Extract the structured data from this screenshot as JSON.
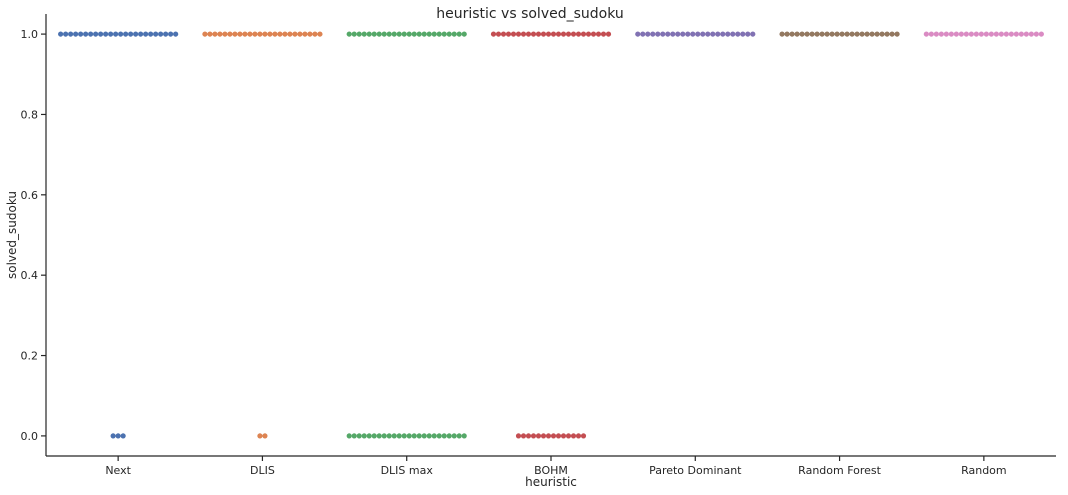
{
  "chart_data": {
    "type": "scatter",
    "subtype": "swarm",
    "title": "heuristic vs solved_sudoku",
    "xlabel": "heuristic",
    "ylabel": "solved_sudoku",
    "categories": [
      "Next",
      "DLIS",
      "DLIS max",
      "BOHM",
      "Pareto Dominant",
      "Random Forest",
      "Random"
    ],
    "colors": [
      "#4c72b0",
      "#dd8452",
      "#55a868",
      "#c44e52",
      "#8172b3",
      "#937860",
      "#da8bc3"
    ],
    "ylim": [
      -0.05,
      1.05
    ],
    "yticks": [
      "0.0",
      "0.2",
      "0.4",
      "0.6",
      "0.8",
      "1.0"
    ],
    "grid": false,
    "legend": "none",
    "series": [
      {
        "category": "Next",
        "points": [
          {
            "y": 1.0,
            "count": 24
          },
          {
            "y": 0.0,
            "count": 3
          }
        ]
      },
      {
        "category": "DLIS",
        "points": [
          {
            "y": 1.0,
            "count": 24
          },
          {
            "y": 0.0,
            "count": 2
          }
        ]
      },
      {
        "category": "DLIS max",
        "points": [
          {
            "y": 1.0,
            "count": 24
          },
          {
            "y": 0.0,
            "count": 24
          }
        ]
      },
      {
        "category": "BOHM",
        "points": [
          {
            "y": 1.0,
            "count": 24
          },
          {
            "y": 0.0,
            "count": 14
          }
        ]
      },
      {
        "category": "Pareto Dominant",
        "points": [
          {
            "y": 1.0,
            "count": 24
          }
        ]
      },
      {
        "category": "Random Forest",
        "points": [
          {
            "y": 1.0,
            "count": 24
          }
        ]
      },
      {
        "category": "Random",
        "points": [
          {
            "y": 1.0,
            "count": 24
          }
        ]
      }
    ]
  }
}
